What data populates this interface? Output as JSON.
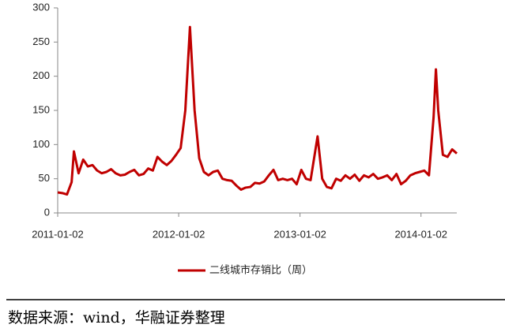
{
  "chart_data": {
    "type": "line",
    "legend_position": "bottom",
    "ylim": [
      0,
      300
    ],
    "yticks": [
      0,
      50,
      100,
      150,
      200,
      250,
      300
    ],
    "xlim": [
      "2011-01-02",
      "2014-04-20"
    ],
    "xticks": [
      "2011-01-02",
      "2012-01-02",
      "2013-01-02",
      "2014-01-02"
    ],
    "x": [
      "2011-01-02",
      "2011-01-16",
      "2011-01-30",
      "2011-02-13",
      "2011-02-20",
      "2011-03-06",
      "2011-03-20",
      "2011-04-03",
      "2011-04-17",
      "2011-05-01",
      "2011-05-15",
      "2011-05-29",
      "2011-06-12",
      "2011-06-26",
      "2011-07-10",
      "2011-07-24",
      "2011-08-07",
      "2011-08-21",
      "2011-09-04",
      "2011-09-18",
      "2011-10-02",
      "2011-10-16",
      "2011-10-30",
      "2011-11-13",
      "2011-11-27",
      "2011-12-11",
      "2011-12-25",
      "2012-01-08",
      "2012-01-22",
      "2012-02-05",
      "2012-02-19",
      "2012-03-04",
      "2012-03-18",
      "2012-04-01",
      "2012-04-15",
      "2012-04-29",
      "2012-05-13",
      "2012-05-27",
      "2012-06-10",
      "2012-06-24",
      "2012-07-08",
      "2012-07-22",
      "2012-08-05",
      "2012-08-19",
      "2012-09-02",
      "2012-09-16",
      "2012-09-30",
      "2012-10-14",
      "2012-10-28",
      "2012-11-11",
      "2012-11-25",
      "2012-12-09",
      "2012-12-23",
      "2013-01-06",
      "2013-01-20",
      "2013-02-03",
      "2013-02-24",
      "2013-03-10",
      "2013-03-24",
      "2013-04-07",
      "2013-04-21",
      "2013-05-05",
      "2013-05-19",
      "2013-06-02",
      "2013-06-16",
      "2013-06-30",
      "2013-07-14",
      "2013-07-28",
      "2013-08-11",
      "2013-08-25",
      "2013-09-08",
      "2013-09-22",
      "2013-10-06",
      "2013-10-20",
      "2013-11-03",
      "2013-11-17",
      "2013-12-01",
      "2013-12-15",
      "2013-12-29",
      "2014-01-12",
      "2014-01-26",
      "2014-02-09",
      "2014-02-16",
      "2014-02-23",
      "2014-03-09",
      "2014-03-23",
      "2014-04-06",
      "2014-04-20"
    ],
    "series": [
      {
        "name": "二线城市存销比（周）",
        "color": "#c00000",
        "values": [
          30,
          29,
          27,
          45,
          90,
          58,
          78,
          68,
          70,
          62,
          58,
          60,
          64,
          58,
          55,
          56,
          60,
          63,
          55,
          57,
          65,
          62,
          82,
          75,
          70,
          76,
          85,
          95,
          150,
          272,
          150,
          80,
          60,
          55,
          60,
          62,
          50,
          48,
          47,
          40,
          34,
          37,
          38,
          44,
          43,
          46,
          55,
          63,
          48,
          50,
          48,
          50,
          42,
          63,
          50,
          48,
          112,
          50,
          38,
          36,
          50,
          47,
          55,
          50,
          56,
          47,
          55,
          52,
          57,
          50,
          52,
          55,
          48,
          57,
          42,
          47,
          55,
          58,
          60,
          62,
          55,
          140,
          210,
          150,
          85,
          82,
          93,
          87
        ]
      }
    ]
  },
  "footer": {
    "source": "数据来源：wind，华融证券整理"
  }
}
